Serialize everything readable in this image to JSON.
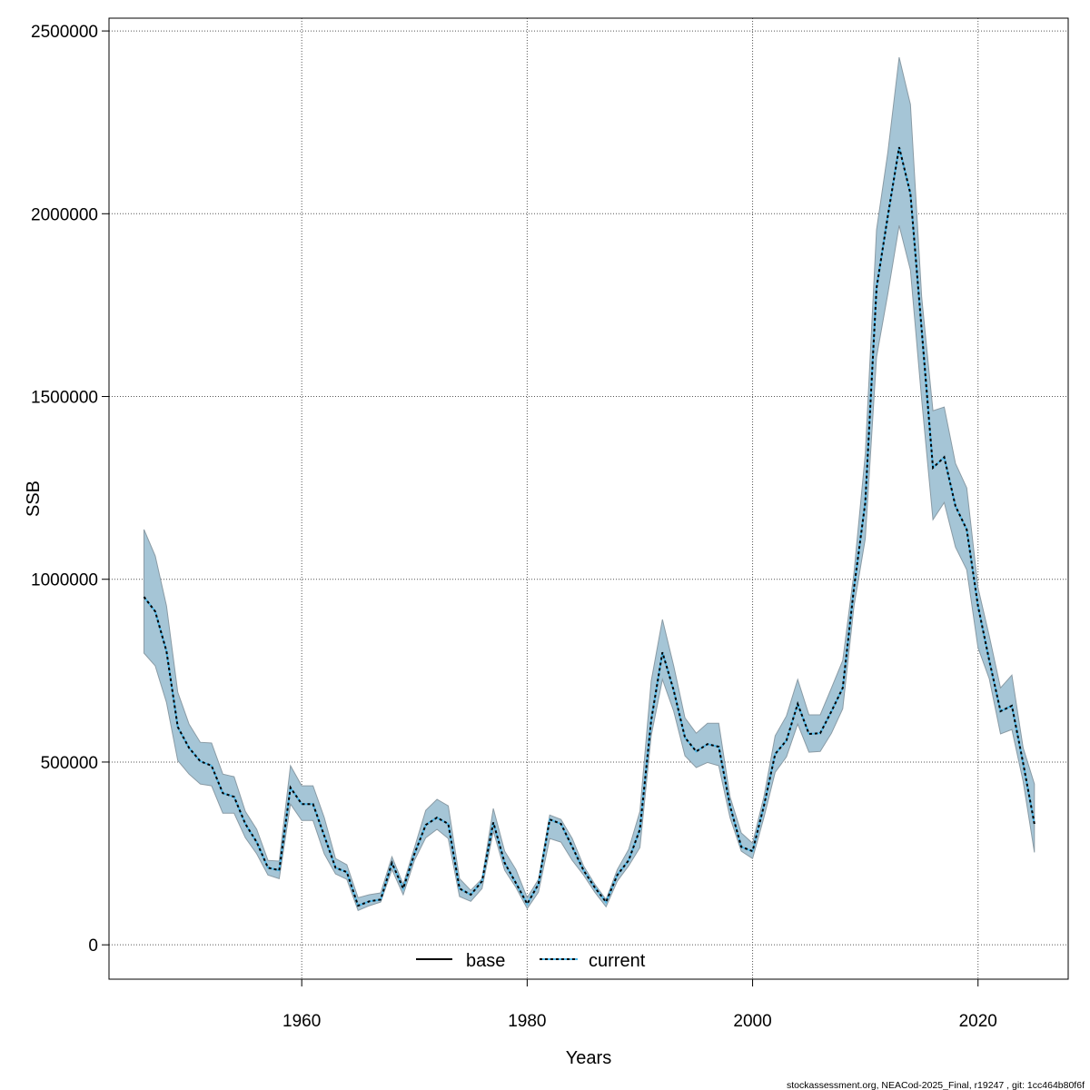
{
  "chart_data": {
    "type": "area",
    "xlabel": "Years",
    "ylabel": "SSB",
    "xlim": [
      1942.9,
      2028
    ],
    "ylim": [
      -94000,
      2535000
    ],
    "x_ticks": [
      1960,
      1980,
      2000,
      2020
    ],
    "y_ticks": [
      0,
      500000,
      1000000,
      1500000,
      2000000,
      2500000
    ],
    "grid": true,
    "legend_placement": "bottom",
    "legend": [
      {
        "name": "base",
        "style": "solid",
        "color": "#000000"
      },
      {
        "name": "current",
        "style": "dashed",
        "color": "#000000"
      }
    ],
    "colors": {
      "band": "#a5c5d6",
      "band_border": "#8a9ba5",
      "current_line": "#4fb8e8",
      "base_line": "#000000"
    },
    "x": [
      1946,
      1947,
      1948,
      1949,
      1950,
      1951,
      1952,
      1953,
      1954,
      1955,
      1956,
      1957,
      1958,
      1959,
      1960,
      1961,
      1962,
      1963,
      1964,
      1965,
      1966,
      1967,
      1968,
      1969,
      1970,
      1971,
      1972,
      1973,
      1974,
      1975,
      1976,
      1977,
      1978,
      1979,
      1980,
      1981,
      1982,
      1983,
      1984,
      1985,
      1986,
      1987,
      1988,
      1989,
      1990,
      1991,
      1992,
      1993,
      1994,
      1995,
      1996,
      1997,
      1998,
      1999,
      2000,
      2001,
      2002,
      2003,
      2004,
      2005,
      2006,
      2007,
      2008,
      2009,
      2010,
      2011,
      2012,
      2013,
      2014,
      2015,
      2016,
      2017,
      2018,
      2019,
      2020,
      2021,
      2022,
      2023,
      2024,
      2025
    ],
    "series": [
      {
        "name": "current",
        "values": [
          952000,
          912000,
          803000,
          596000,
          539000,
          502000,
          490000,
          415000,
          405000,
          331000,
          281000,
          211000,
          204000,
          430000,
          385000,
          385000,
          298000,
          211000,
          199000,
          107000,
          119000,
          124000,
          224000,
          154000,
          249000,
          328000,
          348000,
          331000,
          154000,
          137000,
          174000,
          335000,
          224000,
          169000,
          112000,
          166000,
          343000,
          331000,
          268000,
          204000,
          157000,
          117000,
          191000,
          231000,
          316000,
          614000,
          800000,
          696000,
          567000,
          529000,
          549000,
          542000,
          380000,
          268000,
          256000,
          380000,
          522000,
          559000,
          659000,
          577000,
          579000,
          639000,
          703000,
          977000,
          1210000,
          1797000,
          1995000,
          2182000,
          2055000,
          1682000,
          1305000,
          1334000,
          1200000,
          1136000,
          927000,
          778000,
          639000,
          654000,
          497000,
          331000
        ]
      },
      {
        "name": "base",
        "values": [
          952000,
          912000,
          803000,
          596000,
          539000,
          502000,
          490000,
          415000,
          405000,
          331000,
          281000,
          211000,
          204000,
          430000,
          385000,
          385000,
          298000,
          211000,
          199000,
          107000,
          119000,
          124000,
          224000,
          154000,
          249000,
          328000,
          348000,
          331000,
          154000,
          137000,
          174000,
          335000,
          224000,
          169000,
          112000,
          166000,
          343000,
          331000,
          268000,
          204000,
          157000,
          117000,
          191000,
          231000,
          316000,
          614000,
          800000,
          696000,
          567000,
          529000,
          549000,
          542000,
          380000,
          268000,
          256000,
          380000,
          522000,
          559000,
          659000,
          577000,
          579000,
          639000,
          703000,
          977000,
          1210000,
          1797000,
          1995000,
          2182000,
          2055000,
          1682000,
          1305000,
          1334000,
          1200000,
          1136000,
          927000,
          778000,
          639000,
          654000,
          497000,
          331000
        ]
      }
    ],
    "band_lower": [
      798000,
      763000,
      663000,
      504000,
      467000,
      440000,
      435000,
      360000,
      360000,
      293000,
      249000,
      191000,
      181000,
      385000,
      340000,
      340000,
      249000,
      194000,
      179000,
      94000,
      107000,
      117000,
      206000,
      137000,
      231000,
      293000,
      316000,
      291000,
      132000,
      119000,
      154000,
      311000,
      204000,
      157000,
      99000,
      144000,
      291000,
      281000,
      231000,
      191000,
      144000,
      104000,
      174000,
      216000,
      266000,
      572000,
      726000,
      639000,
      517000,
      485000,
      499000,
      490000,
      348000,
      256000,
      236000,
      348000,
      472000,
      514000,
      604000,
      527000,
      529000,
      579000,
      646000,
      927000,
      1111000,
      1608000,
      1782000,
      1968000,
      1846000,
      1491000,
      1163000,
      1210000,
      1088000,
      1026000,
      813000,
      728000,
      577000,
      589000,
      447000,
      253000
    ],
    "band_upper": [
      1136000,
      1064000,
      927000,
      691000,
      604000,
      554000,
      552000,
      467000,
      460000,
      365000,
      316000,
      231000,
      229000,
      490000,
      435000,
      435000,
      348000,
      236000,
      219000,
      129000,
      137000,
      142000,
      241000,
      166000,
      266000,
      368000,
      398000,
      380000,
      181000,
      149000,
      181000,
      373000,
      256000,
      206000,
      129000,
      179000,
      355000,
      343000,
      291000,
      216000,
      166000,
      124000,
      206000,
      261000,
      365000,
      721000,
      890000,
      763000,
      621000,
      579000,
      606000,
      606000,
      405000,
      306000,
      278000,
      405000,
      572000,
      626000,
      726000,
      629000,
      629000,
      703000,
      778000,
      1019000,
      1342000,
      1956000,
      2169000,
      2428000,
      2299000,
      1772000,
      1461000,
      1471000,
      1317000,
      1250000,
      977000,
      845000,
      703000,
      738000,
      539000,
      440000
    ]
  },
  "footer": "stockassessment.org, NEACod-2025_Final, r19247 , git: 1cc464b80f6f"
}
